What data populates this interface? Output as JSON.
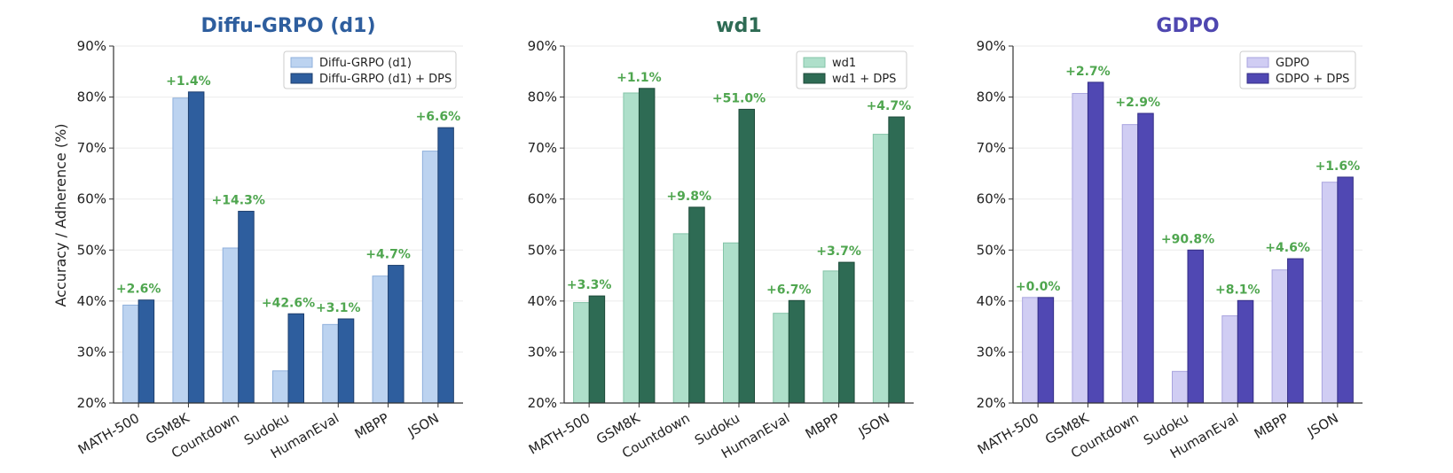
{
  "figure": {
    "ylabel": "Accuracy / Adherence (%)"
  },
  "chart_data": [
    {
      "type": "bar",
      "title": "Diffu-GRPO (d1)",
      "title_color": "#2e5e9e",
      "categories": [
        "MATH-500",
        "GSM8K",
        "Countdown",
        "Sudoku",
        "HumanEval",
        "MBPP",
        "JSON"
      ],
      "ylim": [
        20,
        90
      ],
      "yticks": [
        "20%",
        "30%",
        "40%",
        "50%",
        "60%",
        "70%",
        "80%",
        "90%"
      ],
      "ytick_values": [
        20,
        30,
        40,
        50,
        60,
        70,
        80,
        90
      ],
      "grid": true,
      "legend_position": "top-right",
      "series": [
        {
          "name": "Diffu-GRPO (d1)",
          "color": "#bcd3f0",
          "edge": "#8fb0dc",
          "values": [
            39.2,
            79.8,
            50.4,
            26.3,
            35.4,
            44.9,
            69.4
          ]
        },
        {
          "name": "Diffu-GRPO (d1) + DPS",
          "color": "#2e5e9e",
          "edge": "#1e3f6e",
          "values": [
            40.2,
            81.0,
            57.6,
            37.5,
            36.5,
            47.0,
            74.0
          ]
        }
      ],
      "annotations": [
        "+2.6%",
        "+1.4%",
        "+14.3%",
        "+42.6%",
        "+3.1%",
        "+4.7%",
        "+6.6%"
      ],
      "annotation_color": "#4fa64f"
    },
    {
      "type": "bar",
      "title": "wd1",
      "title_color": "#2e6b54",
      "categories": [
        "MATH-500",
        "GSM8K",
        "Countdown",
        "Sudoku",
        "HumanEval",
        "MBPP",
        "JSON"
      ],
      "ylim": [
        20,
        90
      ],
      "yticks": [
        "20%",
        "30%",
        "40%",
        "50%",
        "60%",
        "70%",
        "80%",
        "90%"
      ],
      "ytick_values": [
        20,
        30,
        40,
        50,
        60,
        70,
        80,
        90
      ],
      "grid": true,
      "legend_position": "top-right",
      "series": [
        {
          "name": "wd1",
          "color": "#aedfca",
          "edge": "#84c4a8",
          "values": [
            39.7,
            80.8,
            53.2,
            51.4,
            37.6,
            45.9,
            72.7
          ]
        },
        {
          "name": "wd1 + DPS",
          "color": "#2e6b54",
          "edge": "#1d4a39",
          "values": [
            41.0,
            81.7,
            58.4,
            77.6,
            40.1,
            47.6,
            76.1
          ]
        }
      ],
      "annotations": [
        "+3.3%",
        "+1.1%",
        "+9.8%",
        "+51.0%",
        "+6.7%",
        "+3.7%",
        "+4.7%"
      ],
      "annotation_color": "#4fa64f"
    },
    {
      "type": "bar",
      "title": "GDPO",
      "title_color": "#4f47b0",
      "categories": [
        "MATH-500",
        "GSM8K",
        "Countdown",
        "Sudoku",
        "HumanEval",
        "MBPP",
        "JSON"
      ],
      "ylim": [
        20,
        90
      ],
      "yticks": [
        "20%",
        "30%",
        "40%",
        "50%",
        "60%",
        "70%",
        "80%",
        "90%"
      ],
      "ytick_values": [
        20,
        30,
        40,
        50,
        60,
        70,
        80,
        90
      ],
      "grid": true,
      "legend_position": "top-right",
      "series": [
        {
          "name": "GDPO",
          "color": "#d0cdf3",
          "edge": "#a9a4df",
          "values": [
            40.7,
            80.7,
            74.6,
            26.2,
            37.1,
            46.1,
            63.3
          ]
        },
        {
          "name": "GDPO + DPS",
          "color": "#5048b3",
          "edge": "#332d85",
          "values": [
            40.7,
            82.9,
            76.8,
            50.0,
            40.1,
            48.3,
            64.3
          ]
        }
      ],
      "annotations": [
        "+0.0%",
        "+2.7%",
        "+2.9%",
        "+90.8%",
        "+8.1%",
        "+4.6%",
        "+1.6%"
      ],
      "annotation_color": "#4fa64f"
    }
  ]
}
